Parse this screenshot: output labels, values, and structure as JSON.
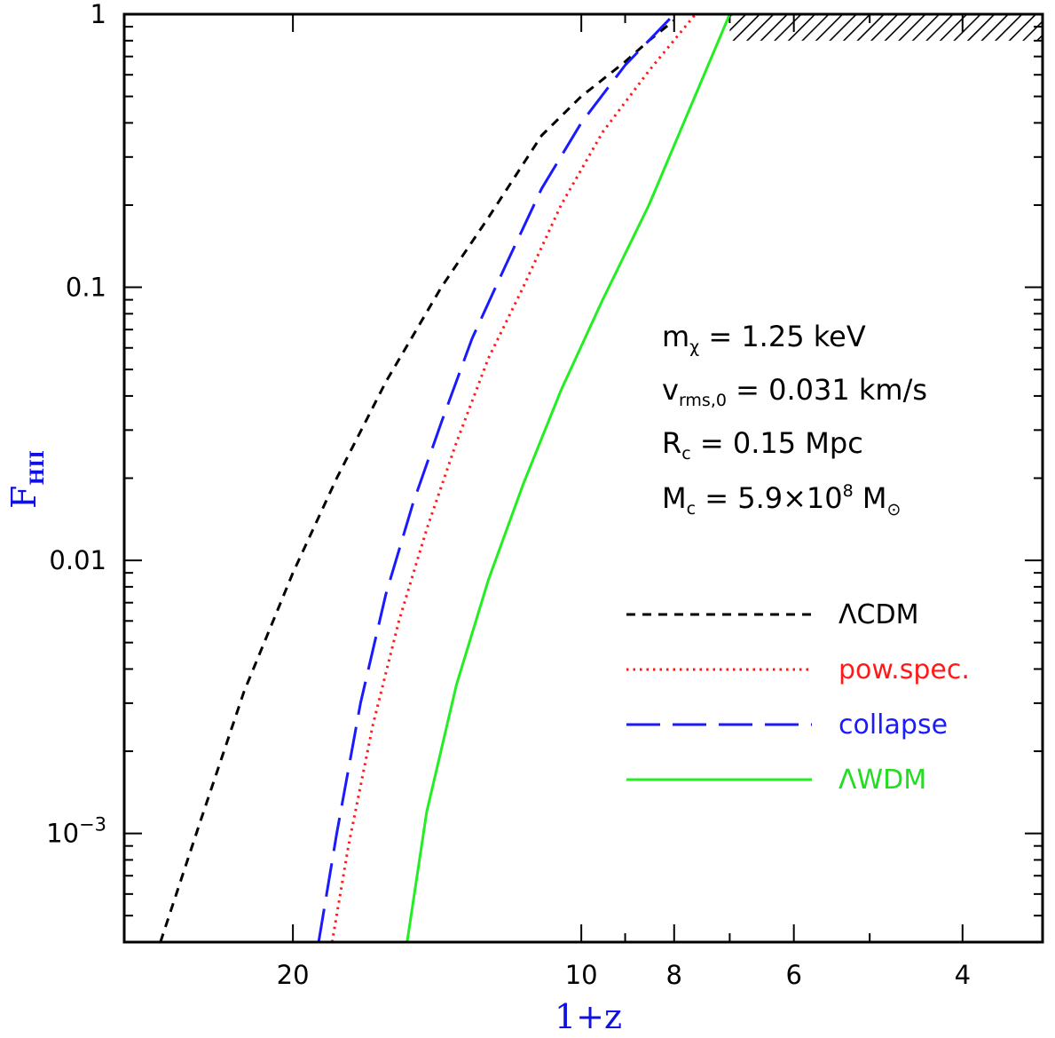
{
  "chart_data": {
    "type": "line",
    "xlabel": "1+z",
    "ylabel_main": "F",
    "ylabel_sub": "HII",
    "x_scale": "log",
    "y_scale": "log",
    "x_reversed": true,
    "xlim": [
      30,
      3.3
    ],
    "ylim": [
      0.0004,
      1
    ],
    "x_ticks": [
      {
        "value": 20,
        "label": "20"
      },
      {
        "value": 10,
        "label": "10"
      },
      {
        "value": 8,
        "label": "8"
      },
      {
        "value": 6,
        "label": "6"
      },
      {
        "value": 4,
        "label": "4"
      }
    ],
    "y_ticks": [
      {
        "value": 1,
        "label": "1"
      },
      {
        "value": 0.1,
        "label": "0.1"
      },
      {
        "value": 0.01,
        "label": "0.01"
      },
      {
        "value": 0.001,
        "label_base": "10",
        "label_exp": "−3"
      }
    ],
    "annotations": [
      {
        "main": "m",
        "sub": "χ",
        "rest": " = 1.25 keV"
      },
      {
        "main": "v",
        "sub": "rms,0",
        "rest": " = 0.031 km/s"
      },
      {
        "main": "R",
        "sub": "c",
        "rest": " = 0.15 Mpc"
      },
      {
        "main": "M",
        "sub": "c",
        "rest": " = 5.9×10",
        "sup": "8",
        "rest2": " M",
        "sub2": "⊙"
      }
    ],
    "excluded_region": {
      "y_from": 0.8,
      "y_to": 1,
      "x_from": 7.0,
      "x_to": 3.3
    },
    "series": [
      {
        "name": "ΛCDM",
        "color": "#000000",
        "dash": "short",
        "x": [
          27.5,
          25,
          22.5,
          20,
          18,
          16,
          14,
          12.5,
          11,
          10,
          9,
          8.5,
          8.0
        ],
        "y": [
          0.0004,
          0.0011,
          0.0033,
          0.009,
          0.02,
          0.045,
          0.1,
          0.18,
          0.36,
          0.5,
          0.67,
          0.8,
          0.95
        ]
      },
      {
        "name": "pow.spec.",
        "color": "#ff1a1a",
        "dash": "dot",
        "x": [
          18.2,
          17.5,
          16.5,
          15.5,
          14.5,
          13.5,
          12.5,
          11.5,
          10.5,
          9.5,
          8.5,
          7.6
        ],
        "y": [
          0.0004,
          0.0009,
          0.0025,
          0.006,
          0.013,
          0.027,
          0.055,
          0.1,
          0.2,
          0.37,
          0.62,
          1.0
        ]
      },
      {
        "name": "collapse",
        "color": "#1a1aff",
        "dash": "long",
        "x": [
          18.8,
          18,
          17,
          16,
          15,
          14,
          13,
          12,
          11,
          10,
          9,
          8.0
        ],
        "y": [
          0.0004,
          0.001,
          0.003,
          0.0075,
          0.016,
          0.032,
          0.065,
          0.12,
          0.23,
          0.4,
          0.65,
          1.0
        ]
      },
      {
        "name": "ΛWDM",
        "color": "#22ee22",
        "dash": "solid",
        "x": [
          15.2,
          14.5,
          13.5,
          12.5,
          11.5,
          10.5,
          9.5,
          8.5,
          7.0
        ],
        "y": [
          0.0004,
          0.0012,
          0.0035,
          0.0085,
          0.019,
          0.042,
          0.09,
          0.2,
          1.0
        ]
      }
    ]
  }
}
